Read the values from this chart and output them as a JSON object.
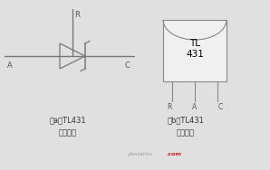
{
  "bg_color": "#e0e0e0",
  "title_a": "（a）TL431",
  "subtitle_a": "的等效图",
  "title_b": "（b）TL431",
  "subtitle_b": "的引脚图",
  "watermark": "jiexiantu",
  "watermark_color": "#999999",
  "com_text": ".com",
  "com_color": "#cc2222",
  "label_color": "#555555",
  "line_color": "#777777",
  "diode_color": "#777777",
  "chip_bg": "#f0f0f0",
  "chip_border": "#888888",
  "font_size_label": 6,
  "font_size_chip": 7.5,
  "font_size_caption": 6,
  "font_size_pin": 5.5,
  "font_size_watermark": 4.5
}
